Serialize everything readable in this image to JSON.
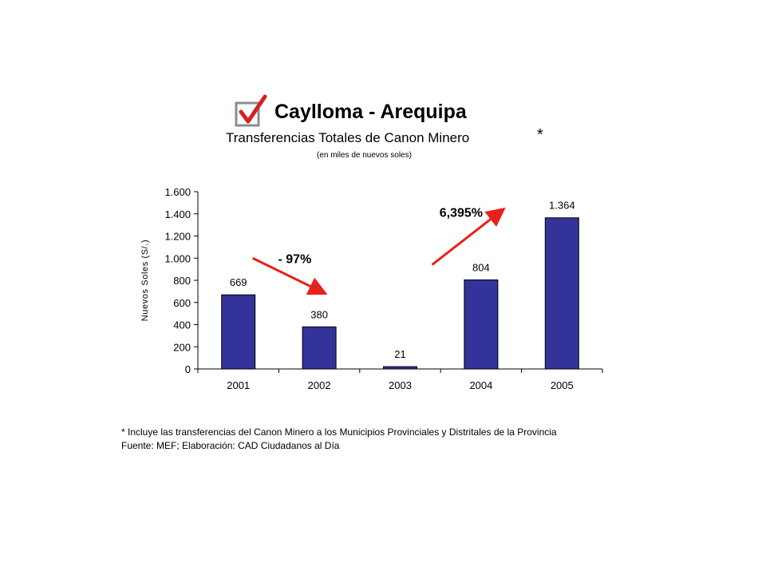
{
  "header": {
    "title": "Caylloma - Arequipa",
    "subtitle": "Transferencias Totales de Canon Minero",
    "asterisk": "*",
    "unit_note": "(en miles de nuevos soles)"
  },
  "footer": {
    "footnote": "* Incluye las transferencias del Canon Minero a los Municipios Provinciales y Distritales de la Provincia",
    "source": "Fuente: MEF; Elaboración: CAD Ciudadanos al Día"
  },
  "icon": "checkbox-check-icon",
  "colors": {
    "bar": "#333399",
    "arrow": "#e8201f",
    "check": "#d42020",
    "box": "#8c8c8c"
  },
  "chart_data": {
    "type": "bar",
    "categories": [
      "2001",
      "2002",
      "2003",
      "2004",
      "2005"
    ],
    "values": [
      669,
      380,
      21,
      804,
      1364
    ],
    "value_labels": [
      "669",
      "380",
      "21",
      "804",
      "1.364"
    ],
    "ylabel": "Nuevos Soles (S/.)",
    "ylim": [
      0,
      1600
    ],
    "yticks": [
      0,
      200,
      400,
      600,
      800,
      1000,
      1200,
      1400,
      1600
    ],
    "ytick_labels": [
      "0",
      "200",
      "400",
      "600",
      "800",
      "1.000",
      "1.200",
      "1.400",
      "1.600"
    ],
    "grid": false,
    "annotations": [
      {
        "text": "- 97%",
        "direction": "down",
        "from_category": "2001",
        "to_category": "2002"
      },
      {
        "text": "6,395%",
        "direction": "up",
        "from_category": "2003",
        "to_category": "2004"
      }
    ]
  }
}
